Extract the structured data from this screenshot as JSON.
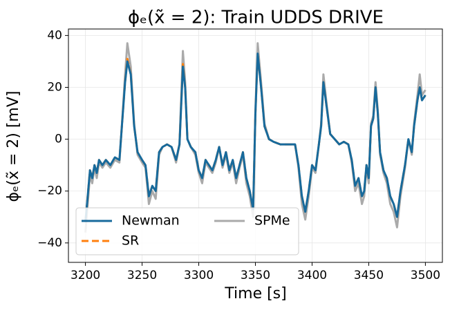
{
  "chart_data": {
    "type": "line",
    "title": "ϕₑ(x̃ = 2): Train UDDS DRIVE",
    "x_label": "Time [s]",
    "y_label": "ϕₑ(x̃ = 2) [mV]",
    "x": [
      3200,
      3202,
      3204,
      3206,
      3208,
      3210,
      3212,
      3215,
      3218,
      3222,
      3226,
      3230,
      3233,
      3235,
      3237,
      3240,
      3243,
      3246,
      3250,
      3253,
      3256,
      3259,
      3262,
      3265,
      3268,
      3272,
      3276,
      3280,
      3283,
      3286,
      3288,
      3290,
      3293,
      3297,
      3300,
      3303,
      3306,
      3309,
      3312,
      3315,
      3318,
      3321,
      3324,
      3327,
      3330,
      3333,
      3336,
      3339,
      3342,
      3345,
      3348,
      3350,
      3352,
      3355,
      3358,
      3362,
      3366,
      3372,
      3380,
      3385,
      3388,
      3391,
      3394,
      3397,
      3400,
      3403,
      3406,
      3408,
      3410,
      3413,
      3416,
      3420,
      3424,
      3428,
      3432,
      3435,
      3438,
      3441,
      3444,
      3446,
      3448,
      3450,
      3452,
      3454,
      3456,
      3458,
      3460,
      3463,
      3466,
      3469,
      3472,
      3475,
      3478,
      3482,
      3485,
      3488,
      3490,
      3493,
      3495,
      3497,
      3500
    ],
    "series": [
      {
        "name": "Newman",
        "color": "#176a9c",
        "linestyle": "solid",
        "values": [
          -32,
          -22,
          -12,
          -15,
          -10,
          -13,
          -8,
          -10,
          -8,
          -10,
          -7,
          -8,
          10,
          22,
          30,
          25,
          5,
          -5,
          -8,
          -10,
          -22,
          -18,
          -20,
          -5,
          -3,
          -2,
          -3,
          -8,
          -2,
          28,
          20,
          0,
          -3,
          -5,
          -12,
          -15,
          -8,
          -10,
          -12,
          -8,
          -3,
          -10,
          -5,
          -12,
          -8,
          -15,
          -10,
          -5,
          -15,
          -20,
          -27,
          10,
          33,
          20,
          5,
          0,
          -1,
          -2,
          -2,
          -2,
          -10,
          -22,
          -28,
          -20,
          -10,
          -12,
          -2,
          5,
          22,
          12,
          2,
          0,
          -2,
          -1,
          -2,
          -8,
          -18,
          -15,
          -22,
          -20,
          -10,
          -15,
          5,
          8,
          20,
          10,
          -5,
          -12,
          -15,
          -22,
          -25,
          -30,
          -20,
          -10,
          0,
          -5,
          5,
          15,
          20,
          15,
          17
        ]
      },
      {
        "name": "SR",
        "color": "#ff7f0e",
        "linestyle": "dashed",
        "values": [
          -32,
          -22,
          -12,
          -15,
          -10,
          -13,
          -8,
          -10,
          -8,
          -10,
          -7,
          -8,
          10,
          22,
          31,
          25,
          5,
          -5,
          -8,
          -10,
          -22,
          -18,
          -20,
          -5,
          -3,
          -2,
          -3,
          -8,
          -2,
          29,
          20,
          0,
          -3,
          -5,
          -12,
          -15,
          -8,
          -10,
          -12,
          -8,
          -3,
          -10,
          -5,
          -12,
          -8,
          -15,
          -10,
          -5,
          -15,
          -20,
          -27,
          10,
          33,
          20,
          5,
          0,
          -1,
          -2,
          -2,
          -2,
          -10,
          -22,
          -28,
          -20,
          -10,
          -12,
          -2,
          5,
          22,
          12,
          2,
          0,
          -2,
          -1,
          -2,
          -8,
          -18,
          -15,
          -22,
          -20,
          -10,
          -15,
          5,
          8,
          20,
          10,
          -5,
          -12,
          -15,
          -22,
          -25,
          -30,
          -20,
          -10,
          0,
          -5,
          5,
          15,
          20,
          15,
          17
        ]
      },
      {
        "name": "SPMe",
        "color": "#aaaaaa",
        "linestyle": "solid",
        "values": [
          -36,
          -25,
          -14,
          -17,
          -11,
          -15,
          -9,
          -11,
          -9,
          -11,
          -8,
          -9,
          11,
          25,
          37,
          28,
          6,
          -6,
          -9,
          -11,
          -25,
          -20,
          -23,
          -6,
          -3,
          -2,
          -3,
          -9,
          -2,
          34,
          22,
          0,
          -3,
          -6,
          -13,
          -17,
          -9,
          -11,
          -13,
          -9,
          -3,
          -11,
          -6,
          -13,
          -9,
          -17,
          -11,
          -6,
          -17,
          -22,
          -30,
          11,
          37,
          22,
          6,
          0,
          -1,
          -2,
          -2,
          -2,
          -11,
          -25,
          -31,
          -22,
          -11,
          -13,
          -2,
          6,
          25,
          13,
          2,
          0,
          -2,
          -1,
          -2,
          -9,
          -20,
          -17,
          -25,
          -22,
          -11,
          -17,
          6,
          9,
          22,
          11,
          -6,
          -13,
          -17,
          -25,
          -28,
          -34,
          -22,
          -11,
          0,
          -6,
          6,
          17,
          25,
          17,
          19
        ]
      }
    ],
    "xlim": [
      3185,
      3515
    ],
    "ylim": [
      -47.5,
      42.5
    ],
    "xticks": [
      3200,
      3250,
      3300,
      3350,
      3400,
      3450,
      3500
    ],
    "yticks": [
      {
        "value": -40,
        "label": "−40"
      },
      {
        "value": -20,
        "label": "−20"
      },
      0,
      20,
      40
    ],
    "grid": true,
    "legend": "lower left"
  }
}
